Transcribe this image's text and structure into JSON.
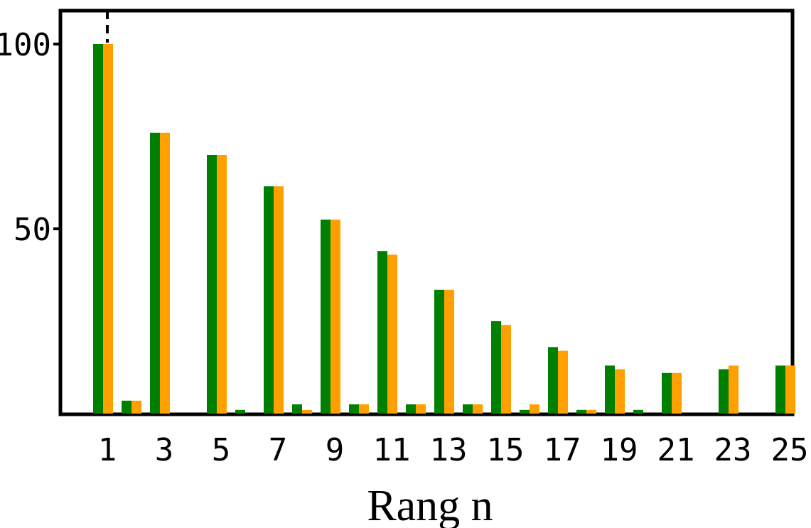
{
  "chart_data": {
    "type": "bar",
    "title": "",
    "xlabel": "Rang n",
    "ylabel": "",
    "x": [
      1,
      2,
      3,
      4,
      5,
      6,
      7,
      8,
      9,
      10,
      11,
      12,
      13,
      14,
      15,
      16,
      17,
      18,
      19,
      20,
      21,
      22,
      23,
      24,
      25
    ],
    "xtick_labels": [
      "1",
      "3",
      "5",
      "7",
      "9",
      "11",
      "13",
      "15",
      "17",
      "19",
      "21",
      "23",
      "25"
    ],
    "ytick_labels": [
      "50",
      "100"
    ],
    "yticks": [
      50,
      100
    ],
    "ylim": [
      0,
      110
    ],
    "grid": false,
    "legend": "none",
    "series": [
      {
        "color": "#008000",
        "values": [
          100,
          3.5,
          76,
          0,
          70,
          1,
          61.5,
          2.5,
          52.5,
          2.5,
          44,
          2.5,
          33.5,
          2.5,
          25,
          1,
          18,
          1,
          13,
          1,
          11,
          0,
          12,
          0,
          13
        ]
      },
      {
        "color": "#ffa000",
        "values": [
          100,
          3.5,
          76,
          0,
          70,
          0,
          61.5,
          1,
          52.5,
          2.5,
          43,
          2.5,
          33.5,
          2.5,
          24,
          2.5,
          17,
          1,
          12,
          0,
          11,
          0,
          13,
          0,
          13
        ]
      }
    ],
    "marker": {
      "x": 1,
      "style": "dashed vertical line"
    }
  }
}
